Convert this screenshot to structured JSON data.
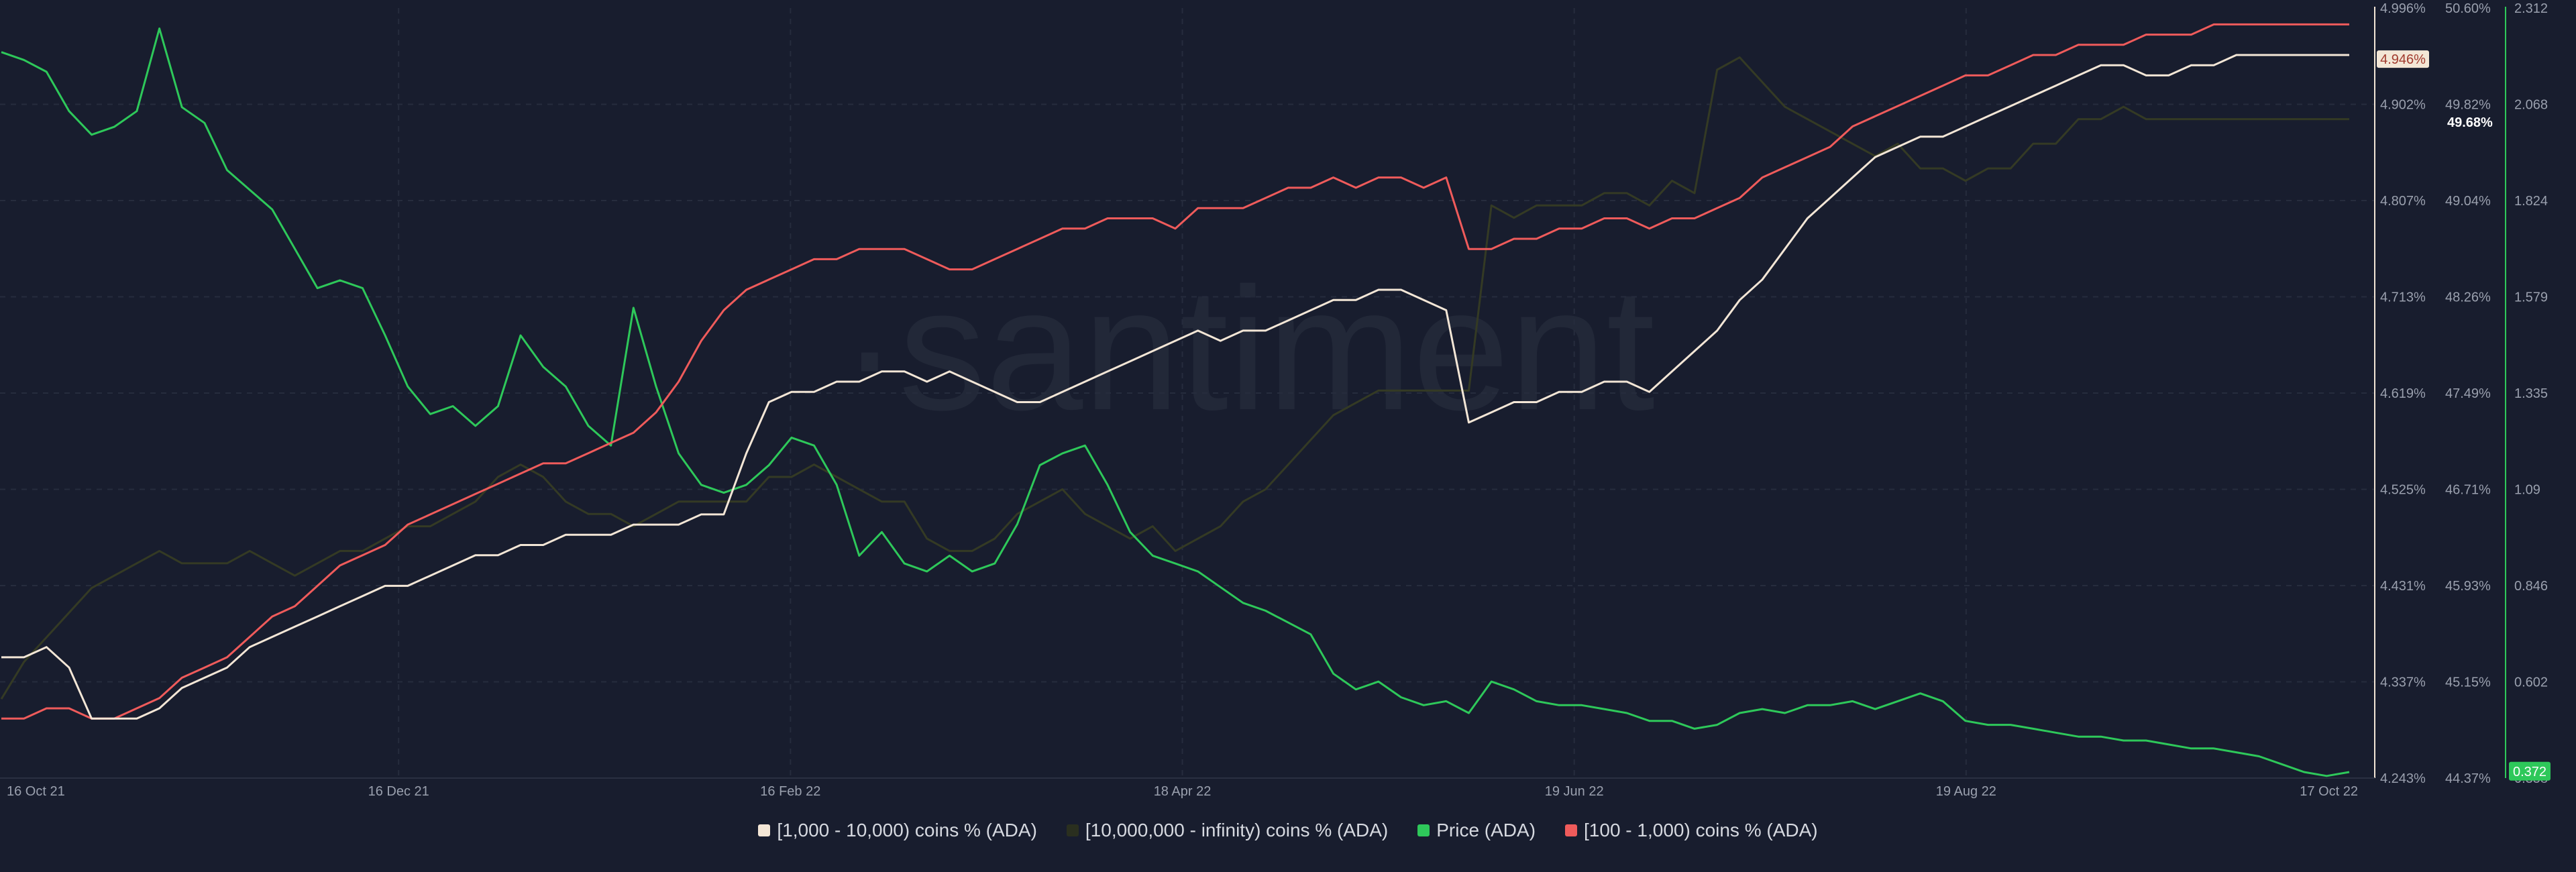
{
  "chart_data": {
    "type": "line",
    "watermark": "·santiment",
    "x_ticks": [
      "16 Oct 21",
      "16 Dec 21",
      "16 Feb 22",
      "18 Apr 22",
      "19 Jun 22",
      "19 Aug 22",
      "17 Oct 22"
    ],
    "axes": {
      "left_pct": {
        "ticks": [
          "4.996%",
          "4.902%",
          "4.807%",
          "4.713%",
          "4.619%",
          "4.525%",
          "4.431%",
          "4.337%",
          "4.243%"
        ],
        "range": [
          4.243,
          4.996
        ],
        "marker": {
          "label": "4.946%",
          "value": 4.946
        }
      },
      "mid_pct": {
        "ticks": [
          "50.60%",
          "49.82%",
          "49.04%",
          "48.26%",
          "47.49%",
          "46.71%",
          "45.93%",
          "45.15%",
          "44.37%"
        ],
        "range": [
          44.37,
          50.6
        ],
        "marker": {
          "label": "49.68%",
          "value": 49.68
        }
      },
      "price": {
        "ticks": [
          "2.312",
          "2.068",
          "1.824",
          "1.579",
          "1.335",
          "1.09",
          "0.846",
          "0.602",
          "0.358"
        ],
        "range": [
          0.358,
          2.312
        ],
        "marker": {
          "label": "0.372",
          "value": 0.372
        }
      }
    },
    "series": [
      {
        "name": "[1,000 - 10,000) coins % (ADA)",
        "color": "#f3e6d6",
        "axis": "left_pct",
        "values": [
          4.36,
          4.36,
          4.37,
          4.35,
          4.3,
          4.3,
          4.3,
          4.31,
          4.33,
          4.34,
          4.35,
          4.37,
          4.38,
          4.39,
          4.4,
          4.41,
          4.42,
          4.43,
          4.43,
          4.44,
          4.45,
          4.46,
          4.46,
          4.47,
          4.47,
          4.48,
          4.48,
          4.48,
          4.49,
          4.49,
          4.49,
          4.5,
          4.5,
          4.56,
          4.61,
          4.62,
          4.62,
          4.63,
          4.63,
          4.64,
          4.64,
          4.63,
          4.64,
          4.63,
          4.62,
          4.61,
          4.61,
          4.62,
          4.63,
          4.64,
          4.65,
          4.66,
          4.67,
          4.68,
          4.67,
          4.68,
          4.68,
          4.69,
          4.7,
          4.71,
          4.71,
          4.72,
          4.72,
          4.71,
          4.7,
          4.59,
          4.6,
          4.61,
          4.61,
          4.62,
          4.62,
          4.63,
          4.63,
          4.62,
          4.64,
          4.66,
          4.68,
          4.71,
          4.73,
          4.76,
          4.79,
          4.81,
          4.83,
          4.85,
          4.86,
          4.87,
          4.87,
          4.88,
          4.89,
          4.9,
          4.91,
          4.92,
          4.93,
          4.94,
          4.94,
          4.93,
          4.93,
          4.94,
          4.94,
          4.95,
          4.95,
          4.95,
          4.95,
          4.95,
          4.95
        ]
      },
      {
        "name": "[10,000,000 - infinity) coins % (ADA)",
        "color": "#343a24",
        "axis": "mid_pct",
        "values": [
          45.0,
          45.3,
          45.5,
          45.7,
          45.9,
          46.0,
          46.1,
          46.2,
          46.1,
          46.1,
          46.1,
          46.2,
          46.1,
          46.0,
          46.1,
          46.2,
          46.2,
          46.3,
          46.4,
          46.4,
          46.5,
          46.6,
          46.8,
          46.9,
          46.8,
          46.6,
          46.5,
          46.5,
          46.4,
          46.5,
          46.6,
          46.6,
          46.6,
          46.6,
          46.8,
          46.8,
          46.9,
          46.8,
          46.7,
          46.6,
          46.6,
          46.3,
          46.2,
          46.2,
          46.3,
          46.5,
          46.6,
          46.7,
          46.5,
          46.4,
          46.3,
          46.4,
          46.2,
          46.3,
          46.4,
          46.6,
          46.7,
          46.9,
          47.1,
          47.3,
          47.4,
          47.5,
          47.5,
          47.5,
          47.5,
          47.5,
          49.0,
          48.9,
          49.0,
          49.0,
          49.0,
          49.1,
          49.1,
          49.0,
          49.2,
          49.1,
          50.1,
          50.2,
          50.0,
          49.8,
          49.7,
          49.6,
          49.5,
          49.4,
          49.5,
          49.3,
          49.3,
          49.2,
          49.3,
          49.3,
          49.5,
          49.5,
          49.7,
          49.7,
          49.8,
          49.7,
          49.7,
          49.7,
          49.7,
          49.7,
          49.7,
          49.7,
          49.7,
          49.7,
          49.7
        ]
      },
      {
        "name": "Price (ADA)",
        "color": "#2ec85a",
        "axis": "price",
        "values": [
          2.2,
          2.18,
          2.15,
          2.05,
          1.99,
          2.01,
          2.05,
          2.26,
          2.06,
          2.02,
          1.9,
          1.85,
          1.8,
          1.7,
          1.6,
          1.62,
          1.6,
          1.48,
          1.35,
          1.28,
          1.3,
          1.25,
          1.3,
          1.48,
          1.4,
          1.35,
          1.25,
          1.2,
          1.55,
          1.35,
          1.18,
          1.1,
          1.08,
          1.1,
          1.15,
          1.22,
          1.2,
          1.1,
          0.92,
          0.98,
          0.9,
          0.88,
          0.92,
          0.88,
          0.9,
          1.0,
          1.15,
          1.18,
          1.2,
          1.1,
          0.98,
          0.92,
          0.9,
          0.88,
          0.84,
          0.8,
          0.78,
          0.75,
          0.72,
          0.62,
          0.58,
          0.6,
          0.56,
          0.54,
          0.55,
          0.52,
          0.6,
          0.58,
          0.55,
          0.54,
          0.54,
          0.53,
          0.52,
          0.5,
          0.5,
          0.48,
          0.49,
          0.52,
          0.53,
          0.52,
          0.54,
          0.54,
          0.55,
          0.53,
          0.55,
          0.57,
          0.55,
          0.5,
          0.49,
          0.49,
          0.48,
          0.47,
          0.46,
          0.46,
          0.45,
          0.45,
          0.44,
          0.43,
          0.43,
          0.42,
          0.41,
          0.39,
          0.37,
          0.36,
          0.37
        ]
      },
      {
        "name": "[100 - 1,000) coins % (ADA)",
        "color": "#ef5b5b",
        "axis": "left_pct",
        "values": [
          4.3,
          4.3,
          4.31,
          4.31,
          4.3,
          4.3,
          4.31,
          4.32,
          4.34,
          4.35,
          4.36,
          4.38,
          4.4,
          4.41,
          4.43,
          4.45,
          4.46,
          4.47,
          4.49,
          4.5,
          4.51,
          4.52,
          4.53,
          4.54,
          4.55,
          4.55,
          4.56,
          4.57,
          4.58,
          4.6,
          4.63,
          4.67,
          4.7,
          4.72,
          4.73,
          4.74,
          4.75,
          4.75,
          4.76,
          4.76,
          4.76,
          4.75,
          4.74,
          4.74,
          4.75,
          4.76,
          4.77,
          4.78,
          4.78,
          4.79,
          4.79,
          4.79,
          4.78,
          4.8,
          4.8,
          4.8,
          4.81,
          4.82,
          4.82,
          4.83,
          4.82,
          4.83,
          4.83,
          4.82,
          4.83,
          4.76,
          4.76,
          4.77,
          4.77,
          4.78,
          4.78,
          4.79,
          4.79,
          4.78,
          4.79,
          4.79,
          4.8,
          4.81,
          4.83,
          4.84,
          4.85,
          4.86,
          4.88,
          4.89,
          4.9,
          4.91,
          4.92,
          4.93,
          4.93,
          4.94,
          4.95,
          4.95,
          4.96,
          4.96,
          4.96,
          4.97,
          4.97,
          4.97,
          4.98,
          4.98,
          4.98,
          4.98,
          4.98,
          4.98,
          4.98
        ]
      }
    ]
  }
}
